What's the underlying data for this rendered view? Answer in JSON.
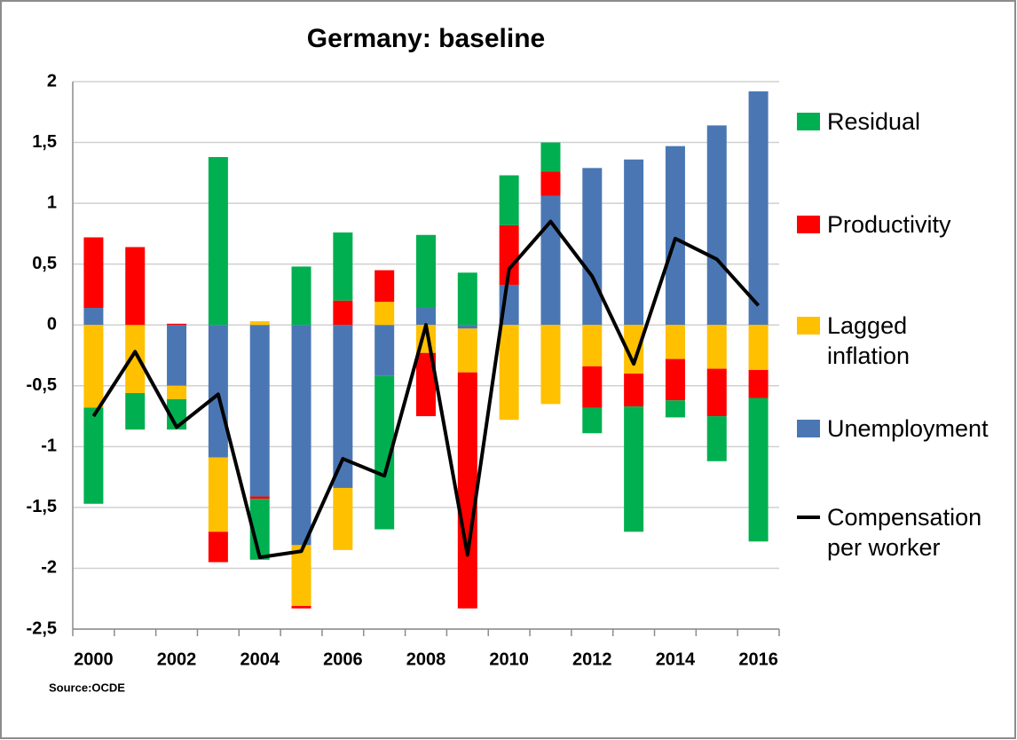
{
  "chart_data": {
    "type": "bar",
    "stacked": true,
    "title": "Germany: baseline",
    "source": "Source:OCDE",
    "categories": [
      "2000",
      null,
      "2002",
      null,
      "2004",
      null,
      "2006",
      null,
      "2008",
      null,
      "2010",
      null,
      "2012",
      null,
      "2014",
      null,
      "2016"
    ],
    "series": [
      {
        "name": "Unemployment",
        "color": "#4a77b4",
        "values": [
          0.14,
          0,
          -0.5,
          -1.09,
          -1.41,
          -1.81,
          -1.34,
          -0.42,
          0.14,
          -0.03,
          0.33,
          1.06,
          1.29,
          1.36,
          1.47,
          1.64,
          1.92
        ]
      },
      {
        "name": "Lagged inflation",
        "color": "#ffc000",
        "values": [
          -0.68,
          -0.56,
          -0.11,
          -0.61,
          0.03,
          -0.5,
          -0.51,
          0.19,
          -0.23,
          -0.36,
          -0.78,
          -0.65,
          -0.34,
          -0.4,
          -0.28,
          -0.36,
          -0.37
        ]
      },
      {
        "name": "Productivity",
        "color": "#ff0000",
        "values": [
          0.58,
          0.64,
          0.01,
          -0.25,
          -0.02,
          -0.02,
          0.2,
          0.26,
          -0.52,
          -1.94,
          0.49,
          0.2,
          -0.34,
          -0.27,
          -0.34,
          -0.39,
          -0.23
        ]
      },
      {
        "name": "Residual",
        "color": "#00b050",
        "values": [
          -0.79,
          -0.3,
          -0.25,
          1.38,
          -0.5,
          0.48,
          0.56,
          -1.26,
          0.6,
          0.43,
          0.41,
          0.24,
          -0.21,
          -1.03,
          -0.14,
          -0.37,
          -1.18
        ]
      },
      {
        "name": "Compensation per worker",
        "type": "line",
        "color": "#000000",
        "values": [
          -0.75,
          -0.22,
          -0.84,
          -0.57,
          -1.91,
          -1.86,
          -1.1,
          -1.24,
          0.0,
          -1.89,
          0.46,
          0.85,
          0.4,
          -0.32,
          0.71,
          0.54,
          0.16
        ]
      }
    ],
    "legend_order": [
      3,
      2,
      1,
      0,
      4
    ],
    "ylim": [
      -2.5,
      2
    ],
    "yticks": [
      2,
      {
        "value": 1.5,
        "label": "1,5"
      },
      1,
      {
        "value": 0.5,
        "label": "0,5"
      },
      0,
      {
        "value": -0.5,
        "label": "-0,5"
      },
      -1,
      {
        "value": -1.5,
        "label": "-1,5"
      },
      -2,
      {
        "value": -2.5,
        "label": "-2,5"
      }
    ],
    "grid": true
  }
}
